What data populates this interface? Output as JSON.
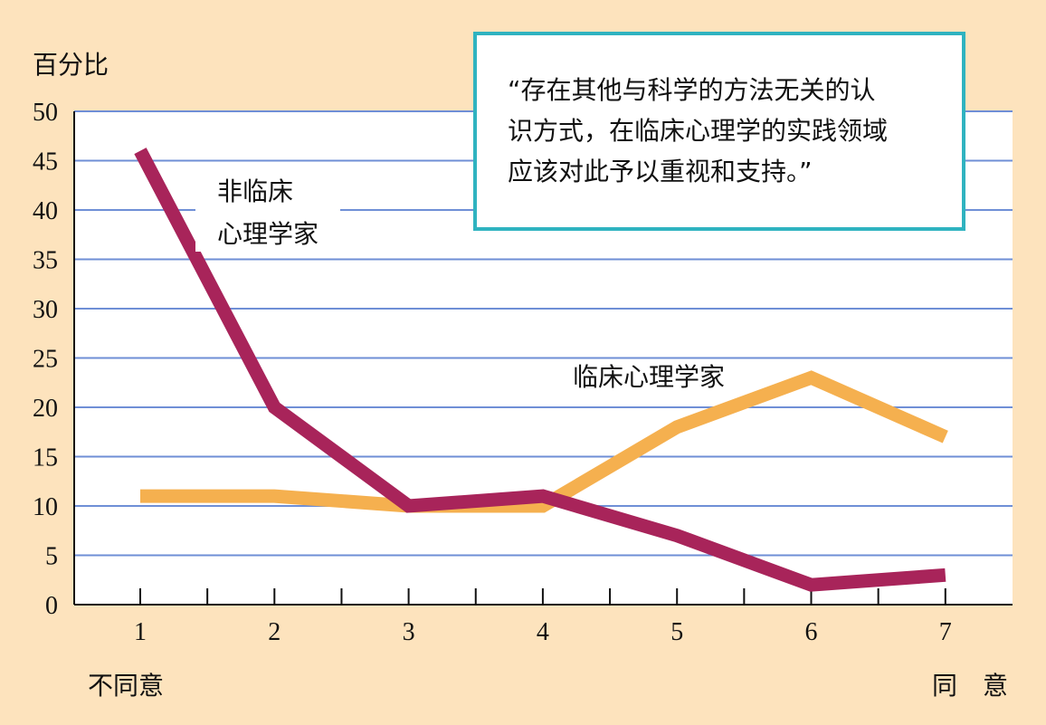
{
  "chart_data": {
    "type": "line",
    "ylabel": "百分比",
    "ylim": [
      0,
      50
    ],
    "yticks": [
      "0",
      "5",
      "10",
      "15",
      "20",
      "25",
      "30",
      "35",
      "40",
      "45",
      "50"
    ],
    "x": [
      1,
      2,
      3,
      4,
      5,
      6,
      7
    ],
    "xtick_labels": [
      "1",
      "2",
      "3",
      "4",
      "5",
      "6",
      "7"
    ],
    "x_left_label": "不同意",
    "x_right_label": "同　意",
    "grid": true,
    "series": [
      {
        "name": "非临床心理学家",
        "label_lines": [
          "非临床",
          "心理学家"
        ],
        "values": [
          46,
          20,
          10,
          11,
          7,
          2,
          3
        ],
        "color": "#a8245a"
      },
      {
        "name": "临床心理学家",
        "label_lines": [
          "临床心理学家"
        ],
        "values": [
          11,
          11,
          10,
          10,
          18,
          23,
          17
        ],
        "color": "#f5b04f"
      }
    ],
    "colors": {
      "background": "#fde3bd",
      "plot": "#ffffff",
      "grid": "#6f8fd6",
      "box_border": "#2fb3c0"
    }
  },
  "quote": {
    "lines": [
      "“存在其他与科学的方法无关的认",
      "识方式，在临床心理学的实践领域",
      "应该对此予以重视和支持。”"
    ]
  }
}
